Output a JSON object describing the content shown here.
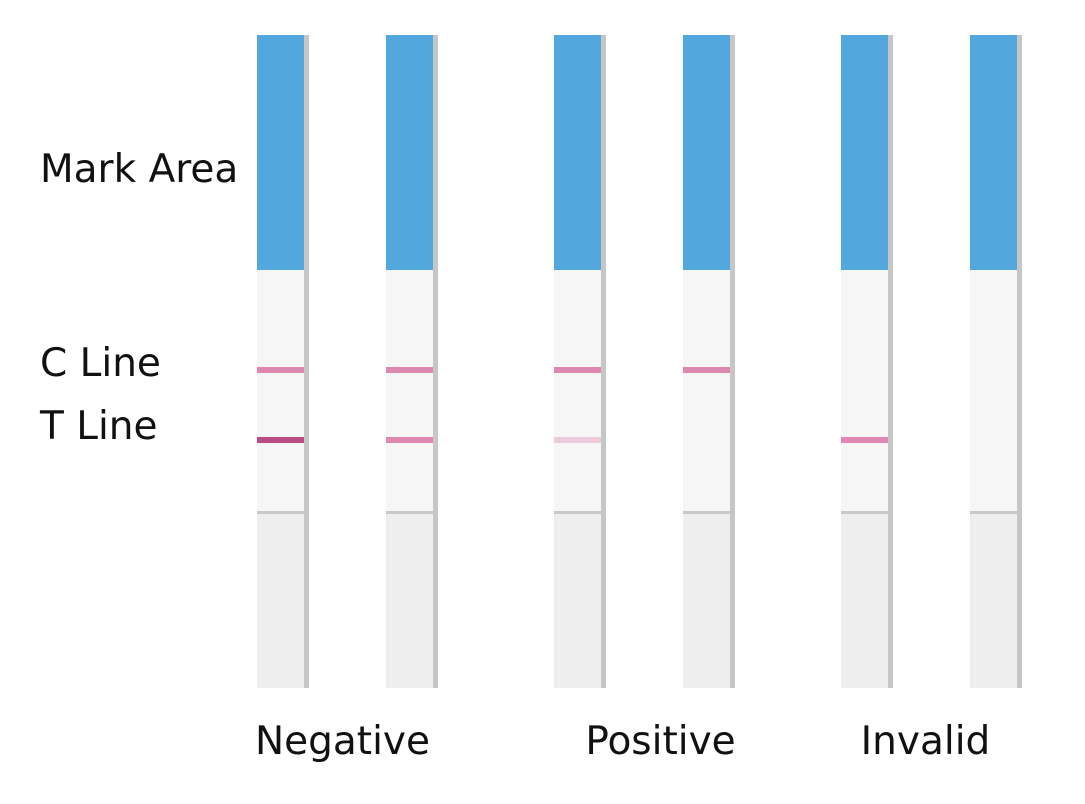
{
  "row_labels": {
    "mark_area": "Mark Area",
    "c_line": "C Line",
    "t_line": "T Line"
  },
  "groups": [
    {
      "label": "Negative"
    },
    {
      "label": "Positive"
    },
    {
      "label": "Invalid"
    }
  ],
  "colors": {
    "mark_area": "#52a7dc",
    "window": "#f6f6f6",
    "handle": "#eeeeee",
    "edge_shadow": "#c6c6c6",
    "separator": "#c8c8c8",
    "line_strong": "#b84b82",
    "line_medium": "#de87b0",
    "line_faint": "#efc9dc"
  },
  "strips": [
    {
      "group": "Negative",
      "c_line": "medium",
      "t_line": "strong"
    },
    {
      "group": "Negative",
      "c_line": "medium",
      "t_line": "medium"
    },
    {
      "group": "Positive",
      "c_line": "medium",
      "t_line": "faint"
    },
    {
      "group": "Positive",
      "c_line": "medium",
      "t_line": "none"
    },
    {
      "group": "Invalid",
      "c_line": "none",
      "t_line": "medium"
    },
    {
      "group": "Invalid",
      "c_line": "none",
      "t_line": "none"
    }
  ]
}
